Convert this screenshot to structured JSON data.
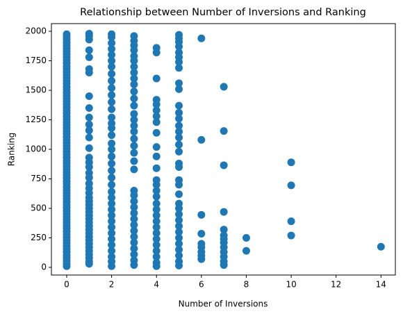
{
  "chart_data": {
    "type": "scatter",
    "title": "Relationship between Number of Inversions and Ranking",
    "x_label": "Number of Inversions",
    "y_label": "Ranking",
    "color": "#1f77b4",
    "xlim": [
      -0.68,
      14.64
    ],
    "ylim": [
      -65,
      2065
    ],
    "xticks": [
      0,
      2,
      4,
      6,
      8,
      10,
      12,
      14
    ],
    "yticks": [
      0,
      250,
      500,
      750,
      1000,
      1250,
      1500,
      1750,
      2000
    ],
    "x": [
      0,
      0,
      0,
      0,
      0,
      0,
      0,
      0,
      0,
      0,
      0,
      0,
      0,
      0,
      0,
      0,
      0,
      0,
      0,
      0,
      0,
      0,
      0,
      0,
      0,
      0,
      0,
      0,
      0,
      0,
      0,
      0,
      0,
      0,
      0,
      0,
      0,
      0,
      0,
      0,
      0,
      0,
      0,
      0,
      0,
      0,
      0,
      0,
      0,
      0,
      0,
      0,
      0,
      0,
      0,
      0,
      0,
      0,
      0,
      0,
      0,
      0,
      0,
      0,
      0,
      0,
      0,
      0,
      0,
      0,
      0,
      0,
      0,
      0,
      0,
      0,
      0,
      0,
      0,
      0,
      1,
      1,
      1,
      1,
      1,
      1,
      1,
      1,
      1,
      1,
      1,
      1,
      1,
      1,
      1,
      1,
      1,
      1,
      1,
      1,
      1,
      1,
      1,
      1,
      1,
      1,
      1,
      1,
      1,
      1,
      1,
      1,
      1,
      1,
      1,
      1,
      1,
      1,
      1,
      1,
      1,
      1,
      2,
      2,
      2,
      2,
      2,
      2,
      2,
      2,
      2,
      2,
      2,
      2,
      2,
      2,
      2,
      2,
      2,
      2,
      2,
      2,
      2,
      2,
      2,
      2,
      2,
      2,
      2,
      2,
      2,
      2,
      2,
      2,
      2,
      2,
      2,
      2,
      2,
      2,
      3,
      3,
      3,
      3,
      3,
      3,
      3,
      3,
      3,
      3,
      3,
      3,
      3,
      3,
      3,
      3,
      3,
      3,
      3,
      3,
      3,
      3,
      3,
      3,
      3,
      3,
      3,
      3,
      3,
      3,
      3,
      3,
      3,
      3,
      3,
      3,
      4,
      4,
      4,
      4,
      4,
      4,
      4,
      4,
      4,
      4,
      4,
      4,
      4,
      4,
      4,
      4,
      4,
      4,
      4,
      4,
      4,
      4,
      4,
      4,
      4,
      4,
      4,
      4,
      5,
      5,
      5,
      5,
      5,
      5,
      5,
      5,
      5,
      5,
      5,
      5,
      5,
      5,
      5,
      5,
      5,
      5,
      5,
      5,
      5,
      5,
      5,
      5,
      5,
      5,
      5,
      5,
      5,
      5,
      5,
      5,
      5,
      5,
      5,
      6,
      6,
      6,
      6,
      6,
      6,
      6,
      6,
      6,
      7,
      7,
      7,
      7,
      7,
      7,
      7,
      7,
      7,
      7,
      7,
      7,
      7,
      8,
      8,
      10,
      10,
      10,
      10,
      14
    ],
    "values": [
      10,
      30,
      55,
      80,
      105,
      130,
      155,
      180,
      205,
      230,
      255,
      280,
      305,
      330,
      355,
      380,
      405,
      430,
      455,
      480,
      505,
      530,
      555,
      580,
      605,
      630,
      655,
      680,
      705,
      730,
      755,
      780,
      805,
      830,
      855,
      880,
      905,
      930,
      955,
      980,
      1005,
      1030,
      1055,
      1080,
      1105,
      1130,
      1155,
      1180,
      1205,
      1230,
      1255,
      1280,
      1305,
      1330,
      1355,
      1380,
      1405,
      1430,
      1455,
      1480,
      1505,
      1530,
      1555,
      1580,
      1605,
      1630,
      1655,
      1680,
      1705,
      1730,
      1755,
      1780,
      1805,
      1830,
      1855,
      1880,
      1905,
      1930,
      1955,
      1975,
      1980,
      1960,
      1930,
      1840,
      1780,
      1680,
      1650,
      1450,
      1350,
      1270,
      1210,
      1160,
      1100,
      1010,
      930,
      890,
      850,
      800,
      760,
      710,
      670,
      630,
      590,
      560,
      530,
      500,
      470,
      440,
      410,
      380,
      350,
      320,
      290,
      260,
      230,
      200,
      170,
      140,
      110,
      80,
      50,
      30,
      1975,
      1950,
      1900,
      1850,
      1800,
      1750,
      1700,
      1640,
      1580,
      1520,
      1460,
      1400,
      1340,
      1270,
      1220,
      1180,
      1120,
      1050,
      1000,
      940,
      880,
      820,
      760,
      700,
      640,
      590,
      540,
      490,
      440,
      390,
      340,
      290,
      240,
      190,
      140,
      90,
      50,
      10,
      1960,
      1920,
      1880,
      1840,
      1790,
      1750,
      1700,
      1650,
      1600,
      1550,
      1490,
      1430,
      1370,
      1300,
      1250,
      1200,
      1150,
      1090,
      1030,
      970,
      900,
      830,
      650,
      610,
      560,
      510,
      460,
      410,
      360,
      310,
      260,
      210,
      160,
      110,
      60,
      20,
      1860,
      1820,
      1600,
      1420,
      1380,
      1330,
      1280,
      1230,
      1140,
      1020,
      940,
      840,
      740,
      700,
      650,
      600,
      540,
      490,
      440,
      390,
      340,
      290,
      240,
      190,
      140,
      90,
      40,
      10,
      1970,
      1940,
      1910,
      1870,
      1820,
      1780,
      1740,
      1690,
      1560,
      1510,
      1370,
      1310,
      1260,
      1200,
      1150,
      1100,
      1040,
      980,
      880,
      850,
      740,
      700,
      620,
      540,
      500,
      450,
      400,
      350,
      300,
      250,
      200,
      150,
      100,
      50,
      15,
      1940,
      1080,
      445,
      285,
      200,
      170,
      130,
      100,
      70,
      1530,
      1155,
      865,
      470,
      320,
      270,
      240,
      210,
      170,
      130,
      90,
      50,
      20,
      250,
      140,
      890,
      695,
      390,
      270,
      175
    ]
  }
}
